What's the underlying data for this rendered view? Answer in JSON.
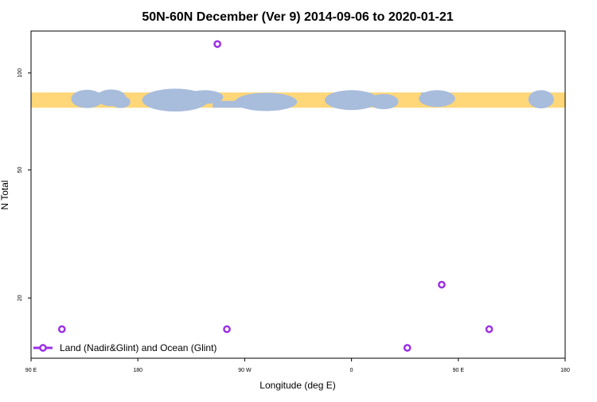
{
  "chart_data": {
    "type": "scatter",
    "title": "50N-60N December (Ver 9)   2014-09-06 to 2020-01-21",
    "xlabel": "Longitude (deg E)",
    "ylabel": "N Total",
    "y_scale": "log",
    "x_range": [
      90,
      540
    ],
    "y_range": [
      13,
      135
    ],
    "x_ticks": [
      {
        "value": 90,
        "label": "90 E"
      },
      {
        "value": 180,
        "label": "180"
      },
      {
        "value": 270,
        "label": "90 W"
      },
      {
        "value": 360,
        "label": "0"
      },
      {
        "value": 450,
        "label": "90 E"
      },
      {
        "value": 540,
        "label": "180"
      }
    ],
    "y_ticks": [
      {
        "value": 20,
        "label": "20"
      },
      {
        "value": 50,
        "label": "50"
      },
      {
        "value": 100,
        "label": "100"
      }
    ],
    "map_band": {
      "y_top": 87,
      "y_bottom": 78,
      "land_color": "#FFD778",
      "ocean_color": "#A8BCDC"
    },
    "series": [
      {
        "name": "Land (Nadir&Glint) and Ocean (Glint)",
        "color": "#9B30E6",
        "marker": "open-circle",
        "points": [
          {
            "x": 116,
            "y": 16
          },
          {
            "x": 247,
            "y": 123
          },
          {
            "x": 255,
            "y": 16
          },
          {
            "x": 407,
            "y": 14
          },
          {
            "x": 436,
            "y": 22
          },
          {
            "x": 476,
            "y": 16
          }
        ]
      }
    ],
    "legend_position": "bottom-left",
    "grid": false
  }
}
